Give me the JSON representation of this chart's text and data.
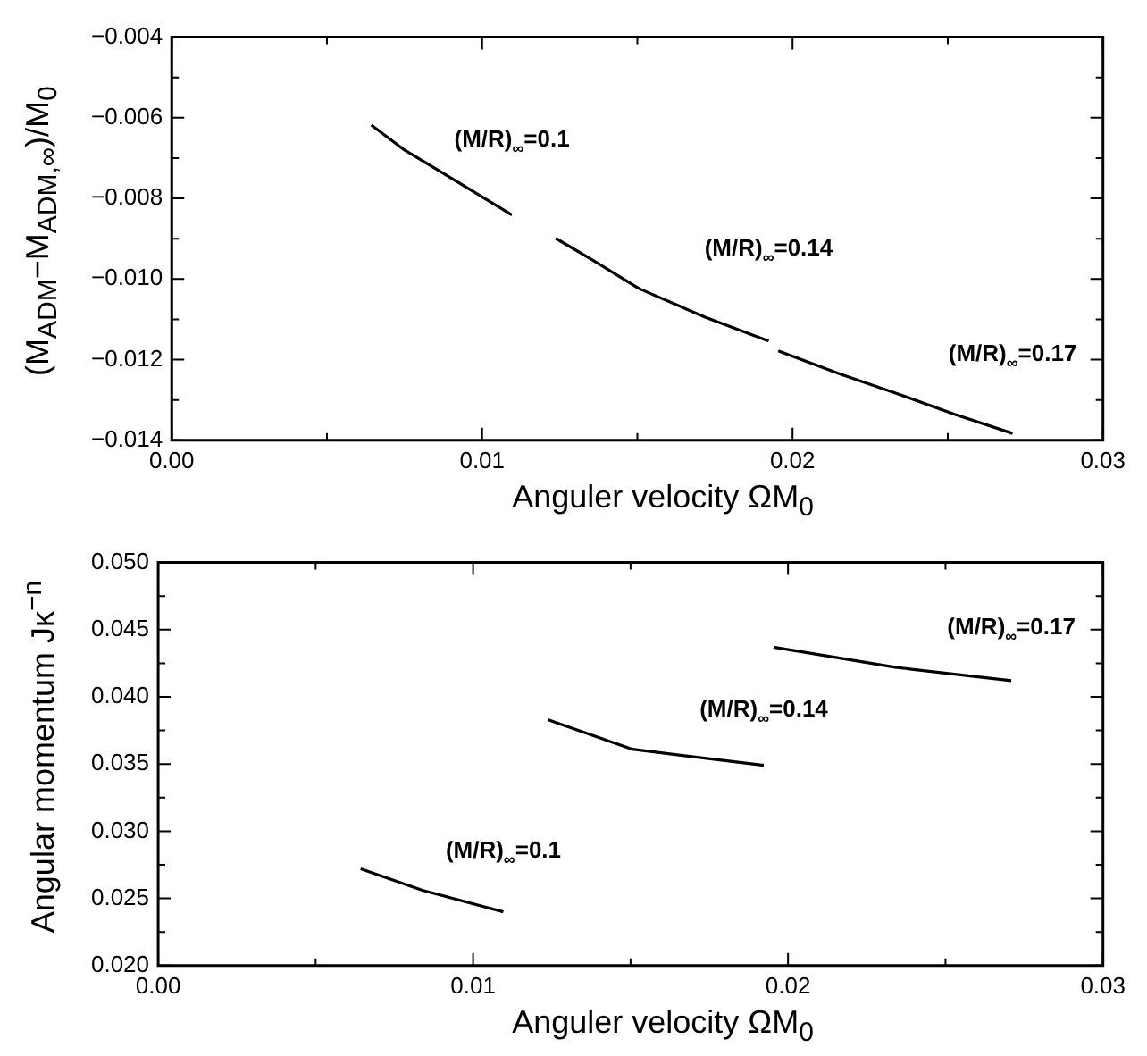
{
  "chart_data": [
    {
      "type": "line",
      "xlabel": "Anguler velocity ΩM$_{0}$",
      "ylabel": "(M$_{ADM}$−M$_{ADM,∞}$)/M$_{0}$",
      "marker": "none",
      "xlim": [
        0,
        0.03
      ],
      "ylim": [
        -0.014,
        -0.004
      ],
      "xticks": [
        {
          "value": 0,
          "label": "0.00"
        },
        {
          "value": 0.005,
          "label": null
        },
        {
          "value": 0.01,
          "label": "0.01"
        },
        {
          "value": 0.015,
          "label": null
        },
        {
          "value": 0.02,
          "label": "0.02"
        },
        {
          "value": 0.025,
          "label": null
        },
        {
          "value": 0.03,
          "label": "0.03"
        }
      ],
      "yticks": [
        {
          "value": -0.014,
          "label": "−0.014"
        },
        {
          "value": -0.013,
          "label": null
        },
        {
          "value": -0.012,
          "label": "−0.012"
        },
        {
          "value": -0.011,
          "label": null
        },
        {
          "value": -0.01,
          "label": "−0.010"
        },
        {
          "value": -0.009,
          "label": null
        },
        {
          "value": -0.008,
          "label": "−0.008"
        },
        {
          "value": -0.007,
          "label": null
        },
        {
          "value": -0.006,
          "label": "−0.006"
        },
        {
          "value": -0.005,
          "label": null
        },
        {
          "value": -0.004,
          "label": "−0.004"
        }
      ],
      "series": [
        {
          "name": "(M/R)$_{∞}$=0.1",
          "color": "#000000",
          "x": [
            0.00643,
            0.0075,
            0.0091,
            0.01096
          ],
          "values": [
            -0.00618,
            -0.0068,
            -0.00754,
            -0.00841
          ]
        },
        {
          "name": "(M/R)$_{∞}$=0.14",
          "color": "#000000",
          "x": [
            0.01237,
            0.0135,
            0.01506,
            0.0172,
            0.01923
          ],
          "values": [
            -0.00899,
            -0.0095,
            -0.01024,
            -0.01095,
            -0.01154
          ]
        },
        {
          "name": "(M/R)$_{∞}$=0.17",
          "color": "#000000",
          "x": [
            0.01954,
            0.0215,
            0.0234,
            0.0252,
            0.02709
          ],
          "values": [
            -0.01178,
            -0.01235,
            -0.01285,
            -0.01335,
            -0.01383
          ]
        }
      ]
    },
    {
      "type": "line",
      "xlabel": "Anguler velocity ΩM$_{0}$",
      "ylabel": "Angular momentum Jκ$^{−n}$",
      "marker": "none",
      "xlim": [
        0,
        0.03
      ],
      "ylim": [
        0.02,
        0.05
      ],
      "xticks": [
        {
          "value": 0,
          "label": "0.00"
        },
        {
          "value": 0.005,
          "label": null
        },
        {
          "value": 0.01,
          "label": "0.01"
        },
        {
          "value": 0.015,
          "label": null
        },
        {
          "value": 0.02,
          "label": "0.02"
        },
        {
          "value": 0.025,
          "label": null
        },
        {
          "value": 0.03,
          "label": "0.03"
        }
      ],
      "yticks": [
        {
          "value": 0.02,
          "label": "0.020"
        },
        {
          "value": 0.0225,
          "label": null
        },
        {
          "value": 0.025,
          "label": "0.025"
        },
        {
          "value": 0.0275,
          "label": null
        },
        {
          "value": 0.03,
          "label": "0.030"
        },
        {
          "value": 0.0325,
          "label": null
        },
        {
          "value": 0.035,
          "label": "0.035"
        },
        {
          "value": 0.0375,
          "label": null
        },
        {
          "value": 0.04,
          "label": "0.040"
        },
        {
          "value": 0.0425,
          "label": null
        },
        {
          "value": 0.045,
          "label": "0.045"
        },
        {
          "value": 0.0475,
          "label": null
        },
        {
          "value": 0.05,
          "label": "0.050"
        }
      ],
      "series": [
        {
          "name": "(M/R)$_{∞}$=0.1",
          "color": "#000000",
          "x": [
            0.00643,
            0.00839,
            0.01096
          ],
          "values": [
            0.0272,
            0.0256,
            0.024
          ]
        },
        {
          "name": "(M/R)$_{∞}$=0.14",
          "color": "#000000",
          "x": [
            0.01237,
            0.01506,
            0.01923
          ],
          "values": [
            0.0383,
            0.0361,
            0.0349
          ]
        },
        {
          "name": "(M/R)$_{∞}$=0.17",
          "color": "#000000",
          "x": [
            0.01954,
            0.0234,
            0.02709
          ],
          "values": [
            0.0437,
            0.0422,
            0.0412
          ]
        }
      ]
    }
  ]
}
